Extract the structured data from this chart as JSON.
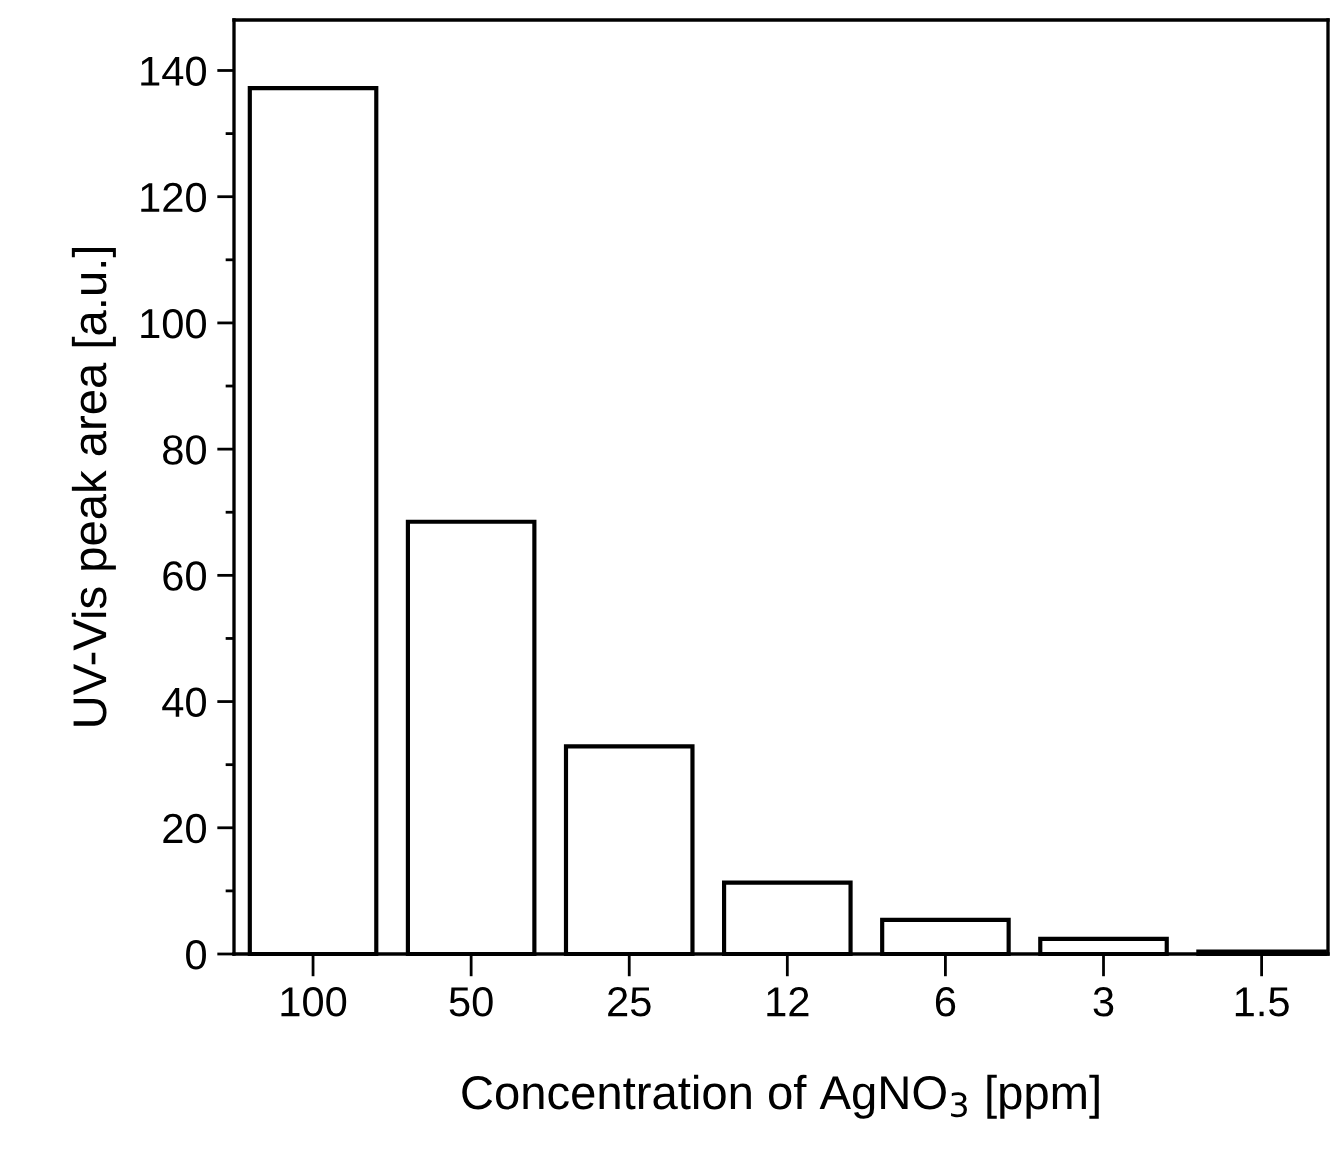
{
  "chart_data": {
    "type": "bar",
    "xlabel": "Concentration of AgNO$_{3}$ [ppm]",
    "ylabel": "UV-Vis peak area [a.u.]",
    "categories": [
      "100",
      "50",
      "25",
      "12",
      "6",
      "3",
      "1.5"
    ],
    "values": [
      137.2,
      68.5,
      32.9,
      11.3,
      5.4,
      2.4,
      0.4
    ],
    "color": "#ffffff",
    "ylim": [
      0,
      148
    ],
    "yticks": [
      0,
      20,
      40,
      60,
      80,
      100,
      120,
      140
    ],
    "grid": false,
    "legend": false
  }
}
